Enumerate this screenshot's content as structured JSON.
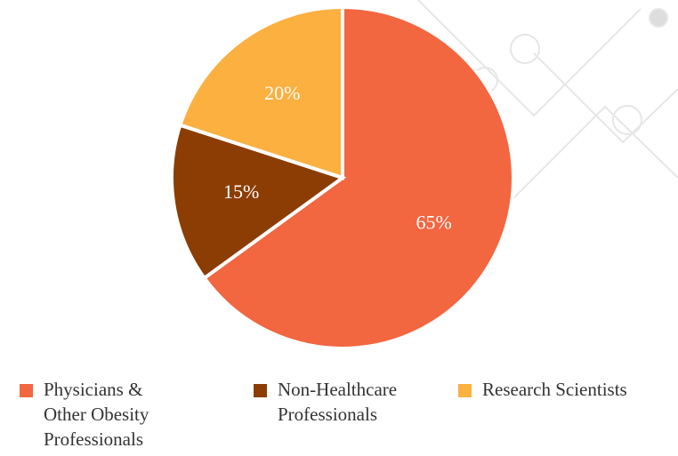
{
  "chart_data": {
    "type": "pie",
    "categories": [
      "Physicians & Other Obesity Professionals",
      "Non-Healthcare Professionals",
      "Research Scientists"
    ],
    "values": [
      65,
      15,
      20
    ],
    "value_labels": [
      "65%",
      "15%",
      "20%"
    ],
    "colors": [
      "#f26640",
      "#8b3d03",
      "#fbb040"
    ],
    "legend": "bottom"
  }
}
